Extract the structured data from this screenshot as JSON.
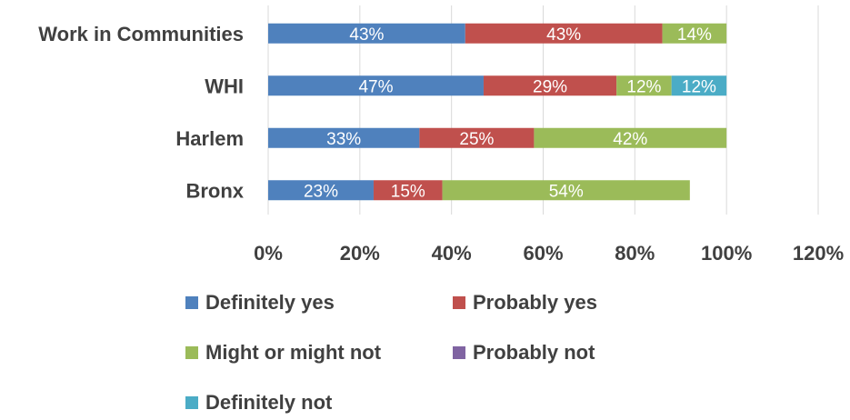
{
  "chart_data": {
    "type": "bar",
    "orientation": "horizontal",
    "stacked": true,
    "categories": [
      "Work in Communities",
      "WHI",
      "Harlem",
      "Bronx"
    ],
    "series": [
      {
        "name": "Definitely yes",
        "color": "#4F81BD",
        "values": [
          43,
          47,
          33,
          23
        ],
        "labels": [
          "43%",
          "47%",
          "33%",
          "23%"
        ]
      },
      {
        "name": "Probably yes",
        "color": "#C0504D",
        "values": [
          43,
          29,
          25,
          15
        ],
        "labels": [
          "43%",
          "29%",
          "25%",
          "15%"
        ]
      },
      {
        "name": "Might or might not",
        "color": "#9BBB59",
        "values": [
          14,
          12,
          42,
          54
        ],
        "labels": [
          "14%",
          "12%",
          "42%",
          "54%"
        ]
      },
      {
        "name": "Probably not",
        "color": "#8064A2",
        "values": [
          0,
          0,
          0,
          0
        ],
        "labels": [
          "",
          "",
          "",
          ""
        ]
      },
      {
        "name": "Definitely not",
        "color": "#4BACC6",
        "values": [
          0,
          12,
          0,
          0
        ],
        "labels": [
          "",
          "12%",
          "",
          ""
        ]
      }
    ],
    "xlim": [
      0,
      120
    ],
    "xticks": [
      0,
      20,
      40,
      60,
      80,
      100,
      120
    ],
    "xtick_labels": [
      "0%",
      "20%",
      "40%",
      "60%",
      "80%",
      "100%",
      "120%"
    ],
    "grid": "vertical",
    "legend_position": "bottom",
    "title": "",
    "xlabel": "",
    "ylabel": ""
  }
}
